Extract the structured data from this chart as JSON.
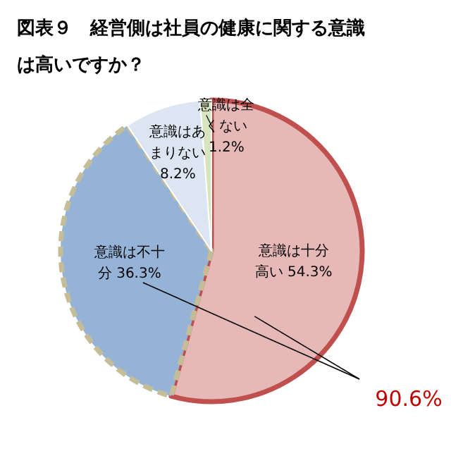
{
  "chart_data": {
    "type": "pie",
    "title": "図表９　経営側は社員の健康に関する意識は高いですか？",
    "categories": [
      "意識は十分高い",
      "意識は不十分",
      "意識はあまりない",
      "意識は全くない"
    ],
    "values": [
      54.3,
      36.3,
      8.2,
      1.2
    ],
    "value_labels": [
      "54.3%",
      "36.3%",
      "8.2%",
      "1.2%"
    ],
    "colors": [
      "#e6b8b7",
      "#95b3d7",
      "#dce6f2",
      "#d7e4bd"
    ],
    "annotations": [
      "90.6%"
    ]
  }
}
